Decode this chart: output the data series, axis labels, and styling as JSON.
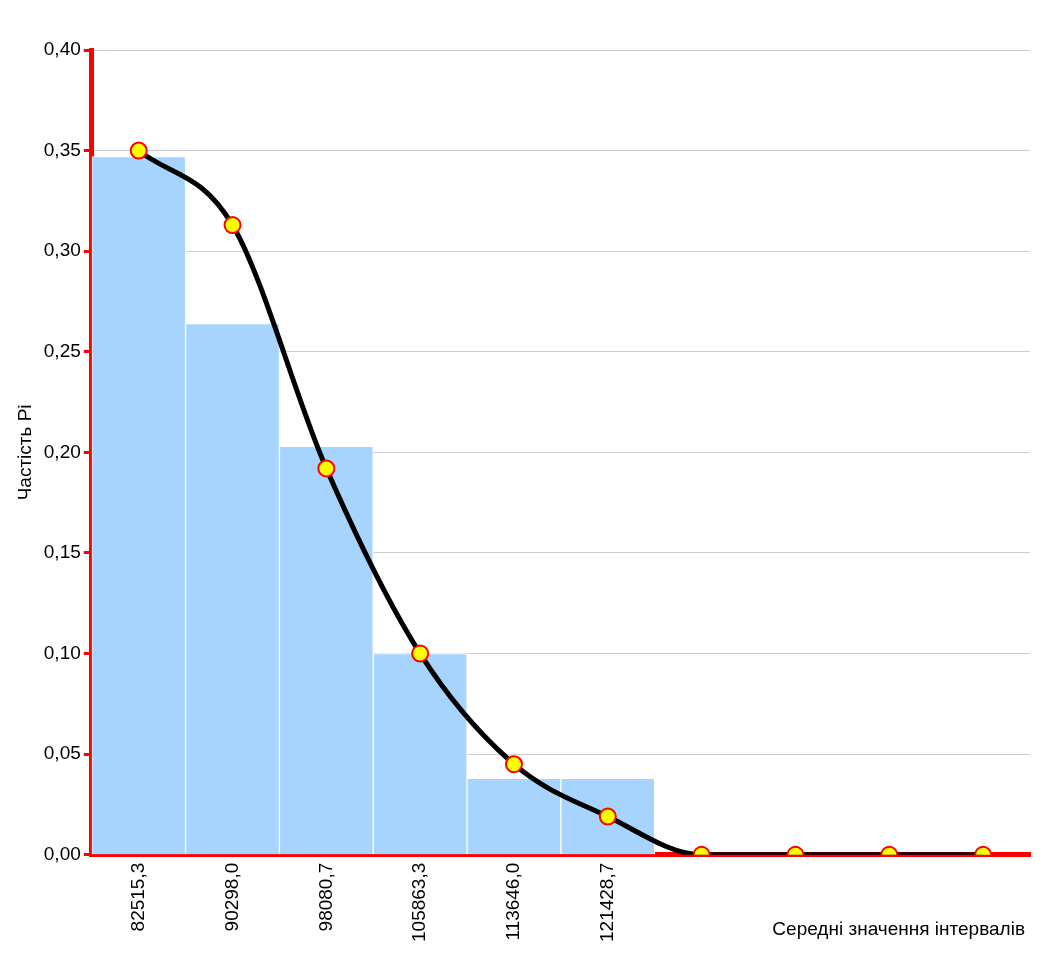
{
  "chart_data": {
    "type": "bar",
    "xlabel": "Середні значення інтервалів",
    "ylabel": "Частість Pi",
    "categories": [
      "82515,3",
      "90298,0",
      "98080,7",
      "105863,3",
      "113646,0",
      "121428,7",
      null,
      null,
      null,
      null
    ],
    "series": [
      {
        "color": "#a6d4ff",
        "values": [
          0.347,
          0.264,
          0.203,
          0.1,
          0.038,
          0.038,
          null,
          null,
          null,
          null
        ]
      },
      {
        "type": "line",
        "color": "#000000",
        "marker": "circle",
        "line_style": "solid",
        "values": [
          0.35,
          0.313,
          0.192,
          0.1,
          0.045,
          0.019,
          0,
          0,
          0,
          0
        ]
      }
    ],
    "ylim": [
      0,
      0.4
    ],
    "yticks": [
      {
        "value": 0,
        "label": "0,00"
      },
      {
        "value": 0.05,
        "label": "0,05"
      },
      {
        "value": 0.1,
        "label": "0,10"
      },
      {
        "value": 0.15,
        "label": "0,15"
      },
      {
        "value": 0.2,
        "label": "0,20"
      },
      {
        "value": 0.25,
        "label": "0,25"
      },
      {
        "value": 0.3,
        "label": "0,30"
      },
      {
        "value": 0.35,
        "label": "0,35"
      },
      {
        "value": 0.4,
        "label": "0,40"
      }
    ],
    "grid": "y",
    "legend": false
  }
}
